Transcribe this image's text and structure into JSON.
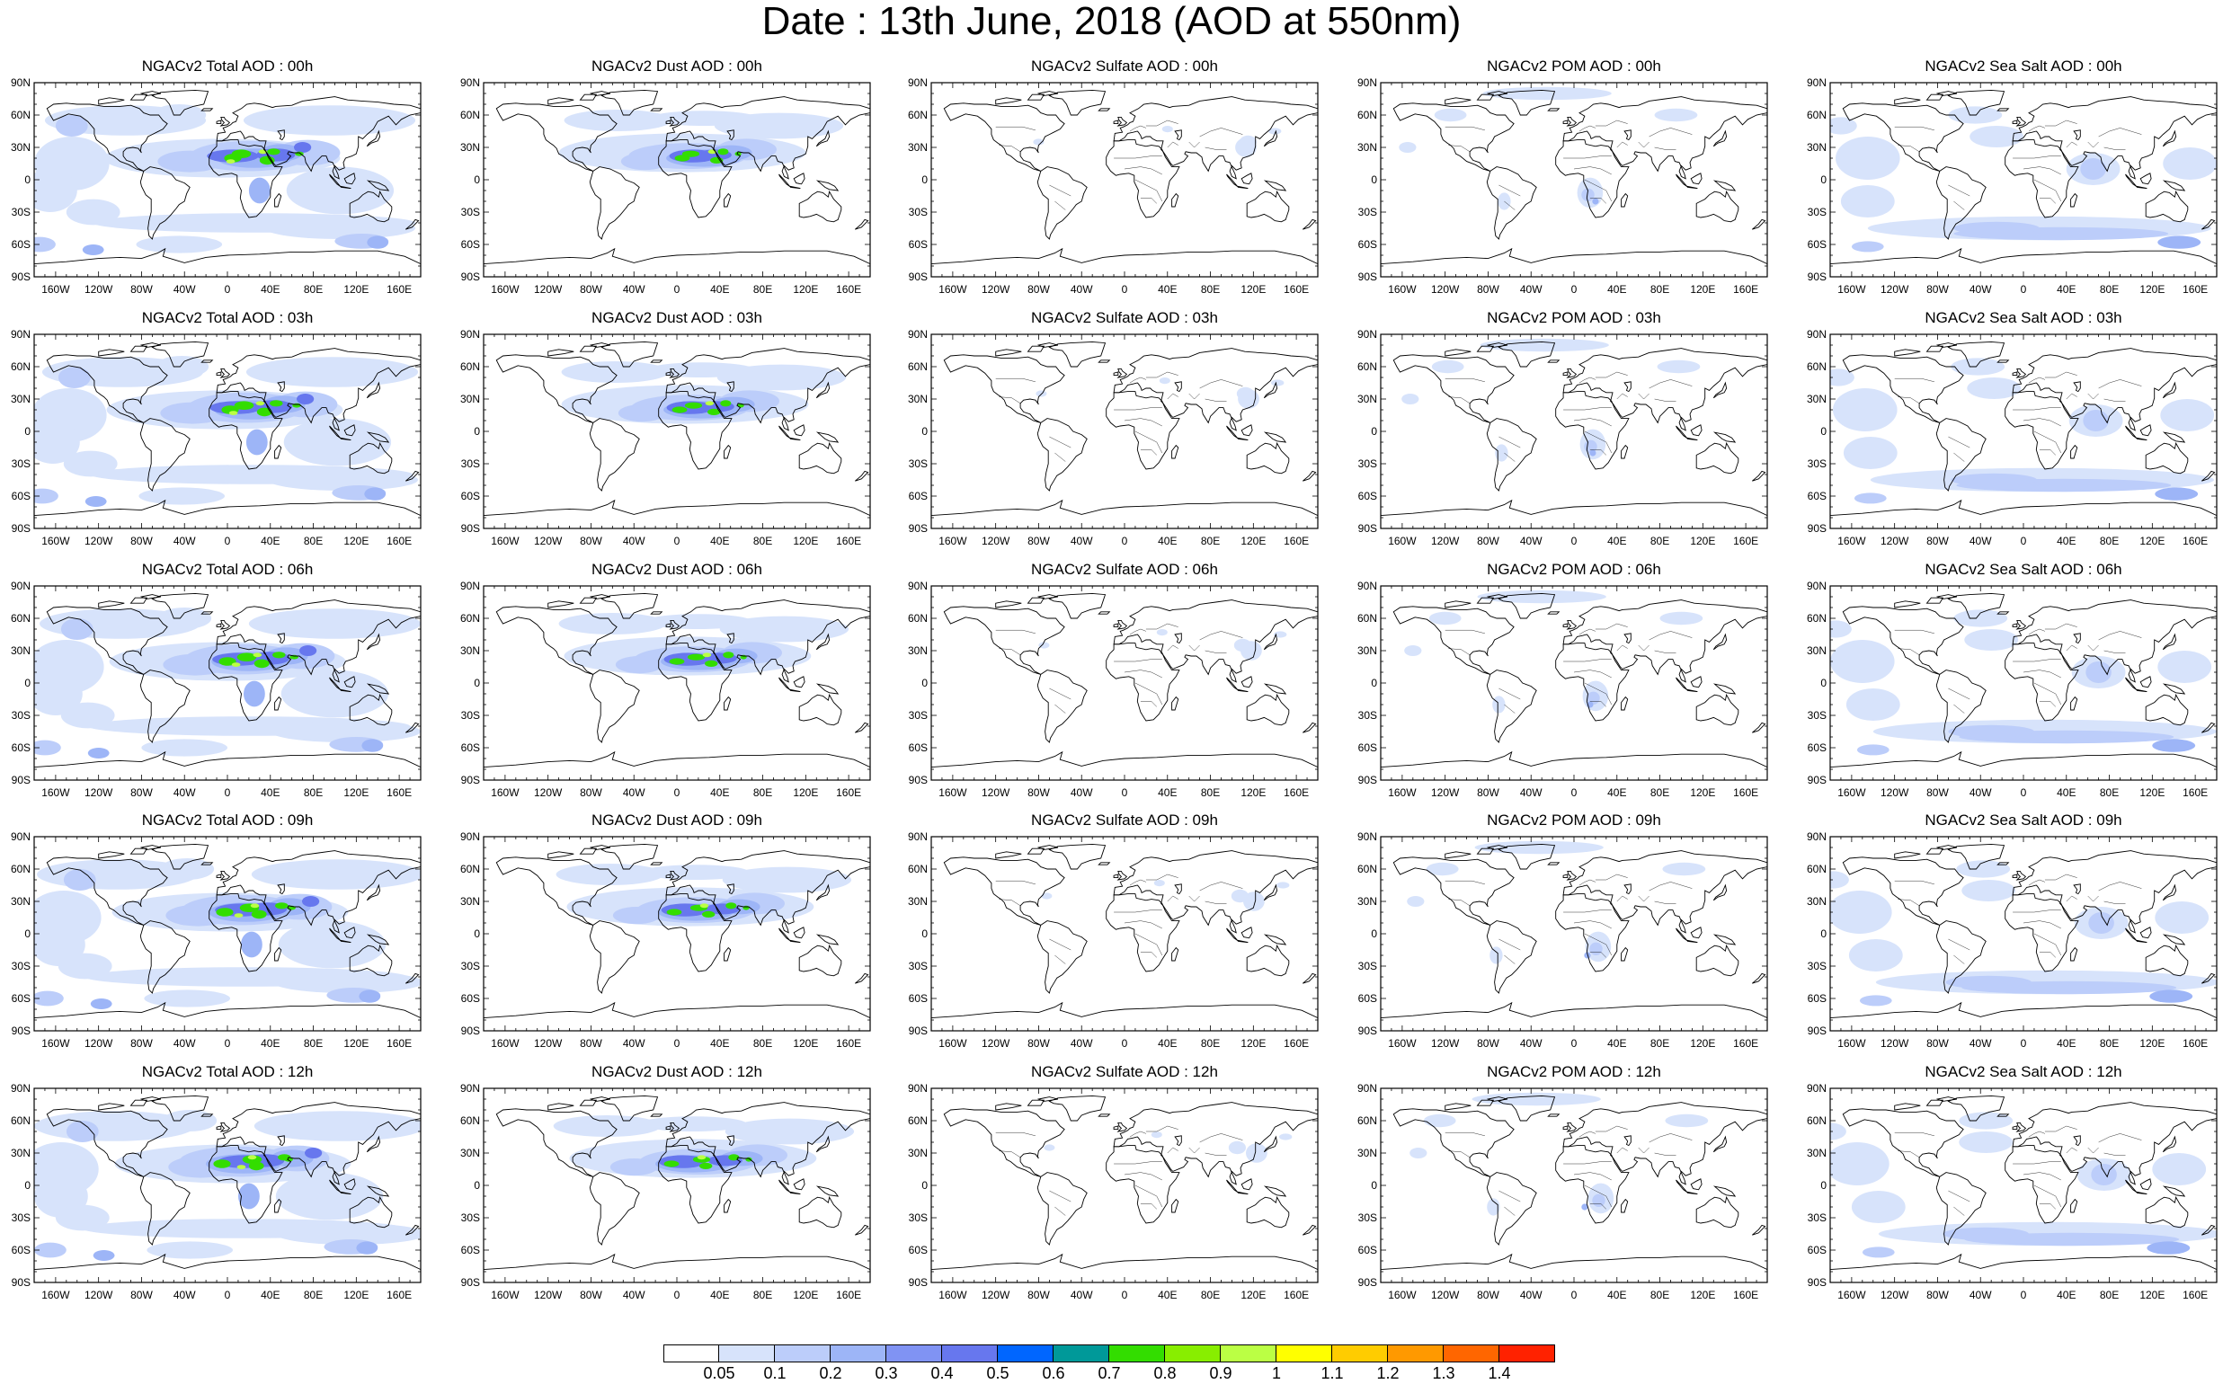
{
  "title": "Date : 13th June, 2018 (AOD at 550nm)",
  "lat_labels": [
    "90N",
    "60N",
    "30N",
    "0",
    "30S",
    "60S",
    "90S"
  ],
  "lon_labels": [
    "160W",
    "120W",
    "80W",
    "40W",
    "0",
    "40E",
    "80E",
    "120E",
    "160E"
  ],
  "panel_titles": [
    [
      "NGACv2 Total AOD : 00h",
      "NGACv2 Dust AOD : 00h",
      "NGACv2 Sulfate AOD : 00h",
      "NGACv2 POM AOD : 00h",
      "NGACv2 Sea Salt AOD : 00h"
    ],
    [
      "NGACv2 Total AOD : 03h",
      "NGACv2 Dust AOD : 03h",
      "NGACv2 Sulfate AOD : 03h",
      "NGACv2 POM AOD : 03h",
      "NGACv2 Sea Salt AOD : 03h"
    ],
    [
      "NGACv2 Total AOD : 06h",
      "NGACv2 Dust AOD : 06h",
      "NGACv2 Sulfate AOD : 06h",
      "NGACv2 POM AOD : 06h",
      "NGACv2 Sea Salt AOD : 06h"
    ],
    [
      "NGACv2 Total AOD : 09h",
      "NGACv2 Dust AOD : 09h",
      "NGACv2 Sulfate AOD : 09h",
      "NGACv2 POM AOD : 09h",
      "NGACv2 Sea Salt  AOD : 09h"
    ],
    [
      "NGACv2 Total AOD  : 12h",
      "NGACv2 Dust AOD : 12h",
      "NGACv2 Sulfate AOD : 12h",
      "NGACv2 POM  AOD : 12h",
      "NGACv2 Sea Salt AOD : 12h"
    ]
  ],
  "colorbar": {
    "colors": [
      "#ffffff",
      "#d7e3fb",
      "#bccdfa",
      "#9db5f7",
      "#8093f3",
      "#6777ee",
      "#0066ff",
      "#009999",
      "#33dd00",
      "#88ee00",
      "#bbff44",
      "#ffff00",
      "#ffcc00",
      "#ff9900",
      "#ff6600",
      "#ff2200"
    ],
    "labels": [
      "0.05",
      "0.1",
      "0.2",
      "0.3",
      "0.4",
      "0.5",
      "0.6",
      "0.7",
      "0.8",
      "0.9",
      "1",
      "1.1",
      "1.2",
      "1.3",
      "1.4"
    ]
  },
  "colors": {
    "light_blue": "#d7e3fb",
    "mid_blue": "#bccdfa",
    "blue": "#9db5f7",
    "deep_blue": "#6777ee",
    "green": "#33dd00",
    "lime": "#bbff44"
  }
}
